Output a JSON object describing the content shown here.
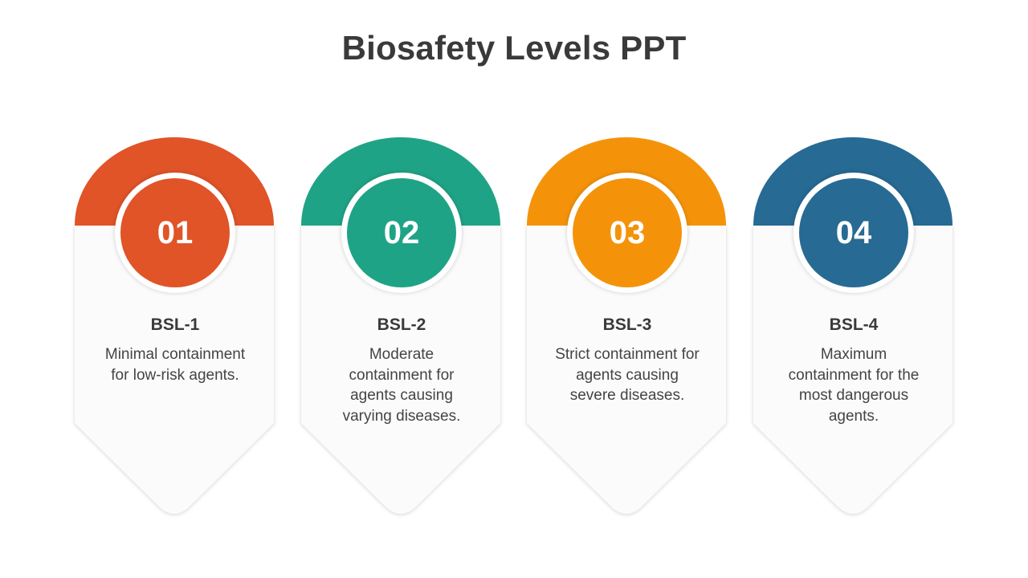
{
  "title": "Biosafety Levels PPT",
  "cards": [
    {
      "number": "01",
      "label": "BSL-1",
      "description": "Minimal containment for low-risk agents.",
      "color": "#E05428"
    },
    {
      "number": "02",
      "label": "BSL-2",
      "description": "Moderate containment for agents causing varying diseases.",
      "color": "#1FA386"
    },
    {
      "number": "03",
      "label": "BSL-3",
      "description": "Strict containment for agents causing severe diseases.",
      "color": "#F4930A"
    },
    {
      "number": "04",
      "label": "BSL-4",
      "description": "Maximum containment for the most dangerous agents.",
      "color": "#276A94"
    }
  ]
}
